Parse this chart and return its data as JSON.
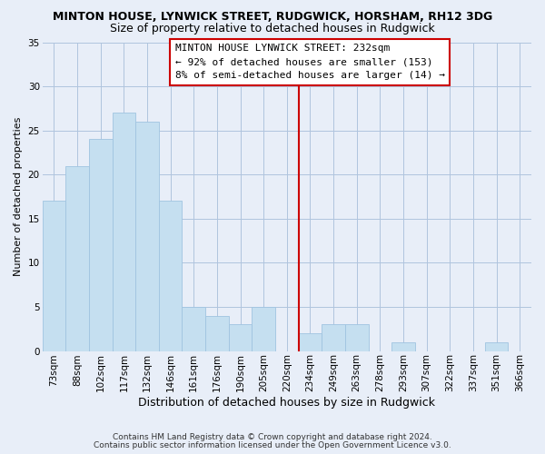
{
  "title": "MINTON HOUSE, LYNWICK STREET, RUDGWICK, HORSHAM, RH12 3DG",
  "subtitle": "Size of property relative to detached houses in Rudgwick",
  "xlabel": "Distribution of detached houses by size in Rudgwick",
  "ylabel": "Number of detached properties",
  "bar_labels": [
    "73sqm",
    "88sqm",
    "102sqm",
    "117sqm",
    "132sqm",
    "146sqm",
    "161sqm",
    "176sqm",
    "190sqm",
    "205sqm",
    "220sqm",
    "234sqm",
    "249sqm",
    "263sqm",
    "278sqm",
    "293sqm",
    "307sqm",
    "322sqm",
    "337sqm",
    "351sqm",
    "366sqm"
  ],
  "bar_values": [
    17,
    21,
    24,
    27,
    26,
    17,
    5,
    4,
    3,
    5,
    0,
    2,
    3,
    3,
    0,
    1,
    0,
    0,
    0,
    1,
    0
  ],
  "bar_color": "#c5dff0",
  "bar_edge_color": "#a0c4e0",
  "grid_color": "#b0c4de",
  "vline_color": "#cc0000",
  "annotation_title": "MINTON HOUSE LYNWICK STREET: 232sqm",
  "annotation_line1": "← 92% of detached houses are smaller (153)",
  "annotation_line2": "8% of semi-detached houses are larger (14) →",
  "ylim": [
    0,
    35
  ],
  "yticks": [
    0,
    5,
    10,
    15,
    20,
    25,
    30,
    35
  ],
  "footnote1": "Contains HM Land Registry data © Crown copyright and database right 2024.",
  "footnote2": "Contains public sector information licensed under the Open Government Licence v3.0.",
  "background_color": "#e8eef8",
  "title_fontsize": 9,
  "subtitle_fontsize": 9,
  "xlabel_fontsize": 9,
  "ylabel_fontsize": 8,
  "tick_fontsize": 7.5,
  "footnote_fontsize": 6.5,
  "ann_fontsize": 8
}
